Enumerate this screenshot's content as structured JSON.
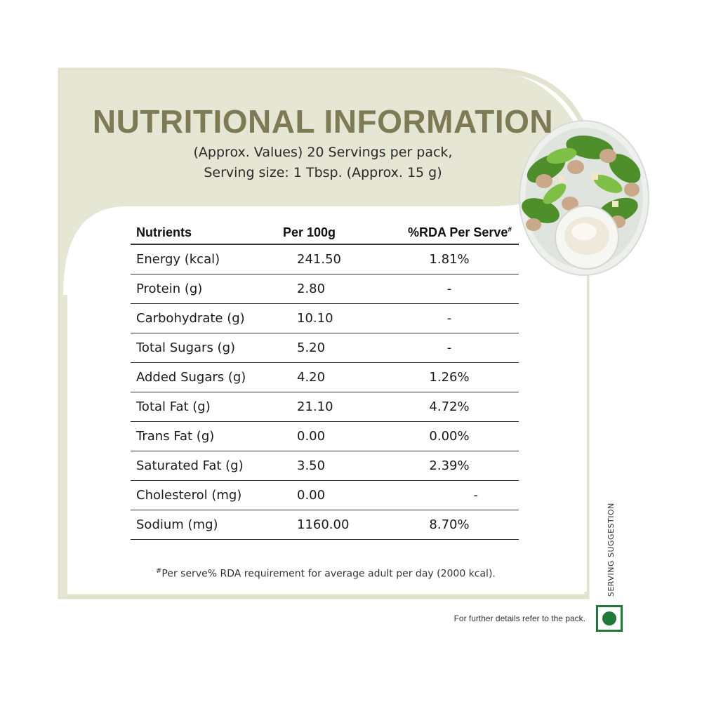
{
  "title": "NUTRITIONAL INFORMATION",
  "subtitle_line1": "(Approx. Values) 20 Servings per pack,",
  "subtitle_line2": "Serving size: 1 Tbsp. (Approx. 15 g)",
  "table": {
    "headers": [
      "Nutrients",
      "Per 100g",
      "%RDA Per Serve"
    ],
    "header_mark": "#",
    "rows": [
      {
        "nutrient": "Energy (kcal)",
        "per100g": "241.50",
        "rda": "1.81%"
      },
      {
        "nutrient": "Protein (g)",
        "per100g": "2.80",
        "rda": "-"
      },
      {
        "nutrient": "Carbohydrate (g)",
        "per100g": "10.10",
        "rda": "-"
      },
      {
        "nutrient": "Total Sugars (g)",
        "per100g": "5.20",
        "rda": "-"
      },
      {
        "nutrient": "Added Sugars (g)",
        "per100g": "4.20",
        "rda": "1.26%"
      },
      {
        "nutrient": "Total Fat (g)",
        "per100g": "21.10",
        "rda": "4.72%"
      },
      {
        "nutrient": "Trans Fat (g)",
        "per100g": "0.00",
        "rda": "0.00%"
      },
      {
        "nutrient": "Saturated Fat (g)",
        "per100g": "3.50",
        "rda": "2.39%"
      },
      {
        "nutrient": "Cholesterol (mg)",
        "per100g": "0.00",
        "rda": "-"
      },
      {
        "nutrient": "Sodium (mg)",
        "per100g": "1160.00",
        "rda": "8.70%"
      }
    ]
  },
  "footnote_mark": "#",
  "footnote": "Per serve% RDA requirement for average adult per day (2000 kcal).",
  "serving_suggestion": "SERVING SUGGESTION",
  "bottom_note": "For further details refer to the pack.",
  "colors": {
    "panel": "#e6e6d5",
    "title": "#7d7a55",
    "veg_green": "#1f7a3a"
  },
  "icons": {
    "dish": "salad-wraps-with-dip-image",
    "veg": "vegetarian-mark-icon"
  }
}
